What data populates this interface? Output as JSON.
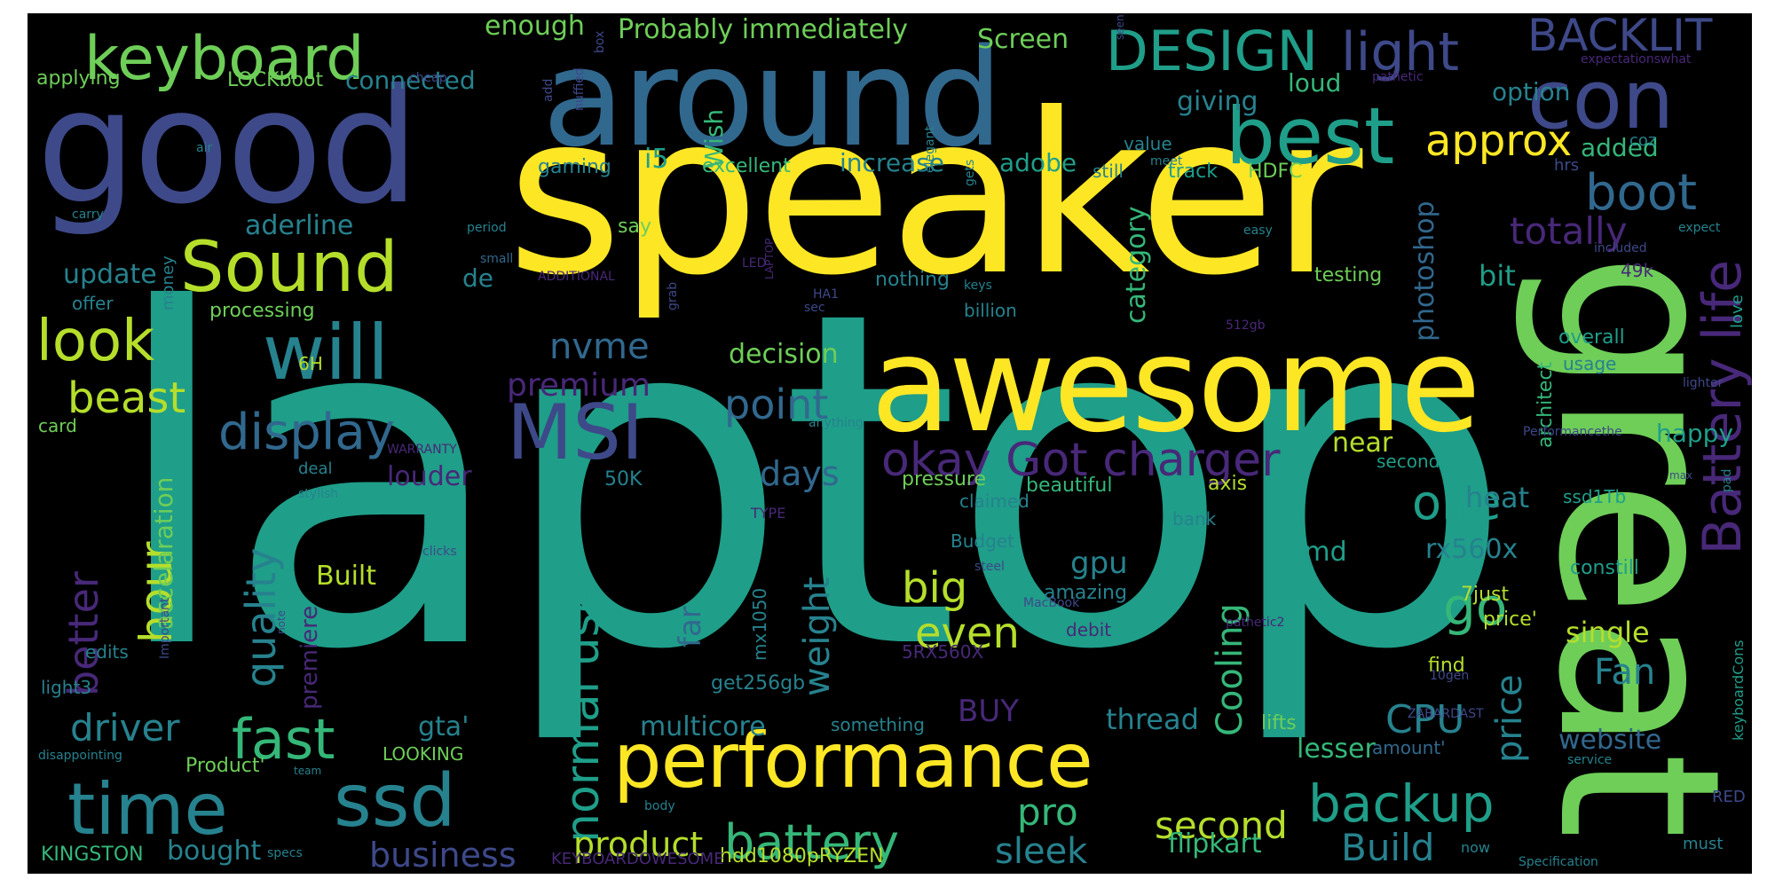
{
  "palette": {
    "background": "#000000",
    "page": "#ffffff",
    "colors": [
      "#440154",
      "#482878",
      "#3e4989",
      "#31688e",
      "#26828e",
      "#1f9e89",
      "#35b779",
      "#6ece58",
      "#b5de2b",
      "#fde725"
    ]
  },
  "words": [
    {
      "text": "laptop",
      "color": "#1f9e89"
    },
    {
      "text": "speaker",
      "color": "#fde725"
    },
    {
      "text": "great",
      "color": "#6ece58"
    },
    {
      "text": "good",
      "color": "#3e4989"
    },
    {
      "text": "around",
      "color": "#31688e"
    },
    {
      "text": "awesome",
      "color": "#fde725"
    },
    {
      "text": "performance",
      "color": "#fde725"
    },
    {
      "text": "best",
      "color": "#1f9e89"
    },
    {
      "text": "con",
      "color": "#3e4989"
    },
    {
      "text": "keyboard",
      "color": "#6ece58"
    },
    {
      "text": "DESIGN",
      "color": "#1f9e89"
    },
    {
      "text": "light",
      "color": "#3e4989"
    },
    {
      "text": "BACKLIT",
      "color": "#3e4989"
    },
    {
      "text": "Sound",
      "color": "#b5de2b"
    },
    {
      "text": "will",
      "color": "#26828e"
    },
    {
      "text": "MSI",
      "color": "#3e4989"
    },
    {
      "text": "time",
      "color": "#26828e"
    },
    {
      "text": "ssd",
      "color": "#26828e"
    },
    {
      "text": "look",
      "color": "#b5de2b"
    },
    {
      "text": "display",
      "color": "#31688e"
    },
    {
      "text": "Battery life",
      "color": "#482878"
    },
    {
      "text": "okay Got charger",
      "color": "#482878"
    },
    {
      "text": "normal use",
      "color": "#1f9e89"
    },
    {
      "text": "backup",
      "color": "#1f9e89"
    },
    {
      "text": "battery",
      "color": "#35b779"
    },
    {
      "text": "boot",
      "color": "#31688e"
    },
    {
      "text": "approx",
      "color": "#fde725"
    },
    {
      "text": "totally",
      "color": "#482878"
    },
    {
      "text": "one",
      "color": "#1f9e89"
    },
    {
      "text": "go",
      "color": "#35b779"
    },
    {
      "text": "CPU",
      "color": "#26828e"
    },
    {
      "text": "fast",
      "color": "#35b779"
    },
    {
      "text": "quality",
      "color": "#26828e"
    },
    {
      "text": "hour",
      "color": "#b5de2b"
    },
    {
      "text": "better",
      "color": "#482878"
    },
    {
      "text": "beast",
      "color": "#b5de2b"
    },
    {
      "text": "driver",
      "color": "#26828e"
    },
    {
      "text": "point",
      "color": "#31688e"
    },
    {
      "text": "nvme",
      "color": "#31688e"
    },
    {
      "text": "premium",
      "color": "#482878"
    },
    {
      "text": "days",
      "color": "#31688e"
    },
    {
      "text": "big",
      "color": "#b5de2b"
    },
    {
      "text": "even",
      "color": "#b5de2b"
    },
    {
      "text": "pro",
      "color": "#35b779"
    },
    {
      "text": "second",
      "color": "#b5de2b"
    },
    {
      "text": "Build",
      "color": "#26828e"
    },
    {
      "text": "sleek",
      "color": "#26828e"
    },
    {
      "text": "business",
      "color": "#3e4989"
    },
    {
      "text": "product",
      "color": "#b5de2b"
    },
    {
      "text": "Cooling",
      "color": "#35b779"
    },
    {
      "text": "weight",
      "color": "#26828e"
    },
    {
      "text": "price",
      "color": "#26828e"
    },
    {
      "text": "Fan",
      "color": "#26828e"
    },
    {
      "text": "website",
      "color": "#31688e"
    },
    {
      "text": "heat",
      "color": "#26828e"
    },
    {
      "text": "rx560x",
      "color": "#26828e"
    },
    {
      "text": "happy",
      "color": "#1f9e89"
    },
    {
      "text": "single",
      "color": "#b5de2b"
    },
    {
      "text": "near",
      "color": "#b5de2b"
    },
    {
      "text": "bit",
      "color": "#1f9e89"
    },
    {
      "text": "aderline",
      "color": "#26828e"
    },
    {
      "text": "update",
      "color": "#26828e"
    },
    {
      "text": "processing",
      "color": "#6ece58"
    },
    {
      "text": "accelaration",
      "color": "#6ece58"
    },
    {
      "text": "gpu",
      "color": "#26828e"
    },
    {
      "text": "amd",
      "color": "#1f9e89"
    },
    {
      "text": "thread",
      "color": "#26828e"
    },
    {
      "text": "gta'",
      "color": "#26828e"
    },
    {
      "text": "multicore",
      "color": "#26828e"
    },
    {
      "text": "BUY",
      "color": "#482878"
    },
    {
      "text": "far",
      "color": "#31688e"
    },
    {
      "text": "Built",
      "color": "#b5de2b"
    },
    {
      "text": "louder",
      "color": "#482878"
    },
    {
      "text": "decision",
      "color": "#6ece58"
    },
    {
      "text": "category",
      "color": "#35b779"
    },
    {
      "text": "photoshop",
      "color": "#31688e"
    },
    {
      "text": "i5",
      "color": "#1f9e89"
    },
    {
      "text": "Wish",
      "color": "#35b779"
    },
    {
      "text": "increase",
      "color": "#26828e"
    },
    {
      "text": "adobe",
      "color": "#1f9e89"
    },
    {
      "text": "giving",
      "color": "#26828e"
    },
    {
      "text": "loud",
      "color": "#35b779"
    },
    {
      "text": "option",
      "color": "#26828e"
    },
    {
      "text": "added",
      "color": "#35b779"
    },
    {
      "text": "Screen",
      "color": "#6ece58"
    },
    {
      "text": "enough",
      "color": "#6ece58"
    },
    {
      "text": "Probably immediately",
      "color": "#6ece58"
    },
    {
      "text": "connected",
      "color": "#26828e"
    },
    {
      "text": "LOCKboot",
      "color": "#6ece58"
    },
    {
      "text": "applying",
      "color": "#6ece58"
    },
    {
      "text": "lesser",
      "color": "#35b779"
    },
    {
      "text": "flipkart",
      "color": "#35b779"
    },
    {
      "text": "second2",
      "color": "#35b779"
    },
    {
      "text": "KINGSTON",
      "color": "#35b779"
    },
    {
      "text": "bought",
      "color": "#26828e"
    },
    {
      "text": "hdd1080pRYZEN",
      "color": "#b5de2b"
    },
    {
      "text": "KEYBOARDOWESOME",
      "color": "#482878"
    },
    {
      "text": "Product'",
      "color": "#6ece58"
    },
    {
      "text": "LOOKING",
      "color": "#6ece58"
    },
    {
      "text": "premiere",
      "color": "#482878"
    },
    {
      "text": "edits",
      "color": "#26828e"
    },
    {
      "text": "light3",
      "color": "#26828e"
    },
    {
      "text": "card",
      "color": "#6ece58"
    },
    {
      "text": "6H",
      "color": "#b5de2b"
    },
    {
      "text": "50K",
      "color": "#26828e"
    },
    {
      "text": "pressure",
      "color": "#6ece58"
    },
    {
      "text": "claimed",
      "color": "#26828e"
    },
    {
      "text": "beautiful",
      "color": "#35b779"
    },
    {
      "text": "axis",
      "color": "#b5de2b"
    },
    {
      "text": "secondshut",
      "color": "#1f9e89"
    },
    {
      "text": "ssd1Tb",
      "color": "#1f9e89"
    },
    {
      "text": "constill",
      "color": "#1f9e89"
    },
    {
      "text": "7just",
      "color": "#b5de2b"
    },
    {
      "text": "price'",
      "color": "#b5de2b"
    },
    {
      "text": "find",
      "color": "#b5de2b"
    },
    {
      "text": "lifts",
      "color": "#6ece58"
    },
    {
      "text": "amount'",
      "color": "#31688e"
    },
    {
      "text": "bank",
      "color": "#26828e"
    },
    {
      "text": "Budget",
      "color": "#26828e"
    },
    {
      "text": "amazing",
      "color": "#26828e"
    },
    {
      "text": "debit",
      "color": "#482878"
    },
    {
      "text": "get256gb",
      "color": "#26828e"
    },
    {
      "text": "mx1050",
      "color": "#26828e"
    },
    {
      "text": "5RX560X",
      "color": "#482878"
    },
    {
      "text": "something",
      "color": "#26828e"
    },
    {
      "text": "overall",
      "color": "#1f9e89"
    },
    {
      "text": "usage",
      "color": "#26828e"
    },
    {
      "text": "architect",
      "color": "#35b779"
    },
    {
      "text": "testing",
      "color": "#6ece58"
    },
    {
      "text": "nothing",
      "color": "#26828e"
    },
    {
      "text": "billion",
      "color": "#26828e"
    },
    {
      "text": "say",
      "color": "#6ece58"
    },
    {
      "text": "still",
      "color": "#26828e"
    },
    {
      "text": "track",
      "color": "#1f9e89"
    },
    {
      "text": "HDFC",
      "color": "#6ece58"
    },
    {
      "text": "excellent",
      "color": "#35b779"
    },
    {
      "text": "gaming",
      "color": "#26828e"
    },
    {
      "text": "value",
      "color": "#26828e"
    },
    {
      "text": "money",
      "color": "#26828e"
    },
    {
      "text": "offer",
      "color": "#26828e"
    },
    {
      "text": "de",
      "color": "#26828e"
    },
    {
      "text": "49k",
      "color": "#482878"
    },
    {
      "text": "love",
      "color": "#1f9e89"
    },
    {
      "text": "hrs",
      "color": "#3e4989"
    },
    {
      "text": "coz",
      "color": "#26828e"
    },
    {
      "text": "cheap",
      "color": "#3e4989"
    },
    {
      "text": "deal",
      "color": "#26828e"
    },
    {
      "text": "stylish",
      "color": "#26828e"
    },
    {
      "text": "must",
      "color": "#26828e"
    },
    {
      "text": "RED",
      "color": "#3e4989"
    },
    {
      "text": "keyboardCons",
      "color": "#1f9e89"
    },
    {
      "text": "now",
      "color": "#26828e"
    },
    {
      "text": "Specification",
      "color": "#26828e"
    },
    {
      "text": "service",
      "color": "#26828e"
    },
    {
      "text": "pad",
      "color": "#26828e"
    },
    {
      "text": "lighter",
      "color": "#3e4989"
    },
    {
      "text": "disappointing",
      "color": "#26828e"
    },
    {
      "text": "team",
      "color": "#26828e"
    },
    {
      "text": "specs",
      "color": "#26828e"
    },
    {
      "text": "body",
      "color": "#26828e"
    },
    {
      "text": "carry",
      "color": "#26828e"
    },
    {
      "text": "air",
      "color": "#26828e"
    },
    {
      "text": "period",
      "color": "#26828e"
    },
    {
      "text": "small",
      "color": "#31688e"
    },
    {
      "text": "ADDITIONAL",
      "color": "#482878"
    },
    {
      "text": "grab",
      "color": "#3e4989"
    },
    {
      "text": "sec",
      "color": "#3e4989"
    },
    {
      "text": "keys",
      "color": "#26828e"
    },
    {
      "text": "easy",
      "color": "#26828e"
    },
    {
      "text": "expect",
      "color": "#26828e"
    },
    {
      "text": "included",
      "color": "#3e4989"
    },
    {
      "text": "meet",
      "color": "#26828e"
    },
    {
      "text": "gets",
      "color": "#26828e"
    },
    {
      "text": "elegant",
      "color": "#26828e"
    },
    {
      "text": "pathetic",
      "color": "#482878"
    },
    {
      "text": "expectationswhat",
      "color": "#482878"
    },
    {
      "text": "nuffied",
      "color": "#3e4989"
    },
    {
      "text": "add",
      "color": "#3e4989"
    },
    {
      "text": "box",
      "color": "#3e4989"
    },
    {
      "text": "seen",
      "color": "#3e4989"
    },
    {
      "text": "Performancethe",
      "color": "#3e4989"
    },
    {
      "text": "max",
      "color": "#3e4989"
    },
    {
      "text": "anything",
      "color": "#26828e"
    },
    {
      "text": "TYPE",
      "color": "#482878"
    },
    {
      "text": "WARRANTY",
      "color": "#482878"
    },
    {
      "text": "clicks",
      "color": "#3e4989"
    },
    {
      "text": "steel",
      "color": "#3e4989"
    },
    {
      "text": "MacBook",
      "color": "#3e4989"
    },
    {
      "text": "pathetic2",
      "color": "#482878"
    },
    {
      "text": "10gen",
      "color": "#3e4989"
    },
    {
      "text": "ZABARDAST",
      "color": "#3e4989"
    },
    {
      "text": "Important",
      "color": "#3e4989"
    },
    {
      "text": "note",
      "color": "#3e4989"
    },
    {
      "text": "LED",
      "color": "#482878"
    },
    {
      "text": "LAPTOP",
      "color": "#482878"
    },
    {
      "text": "HA1",
      "color": "#3e4989"
    },
    {
      "text": "512gb",
      "color": "#482878"
    }
  ]
}
